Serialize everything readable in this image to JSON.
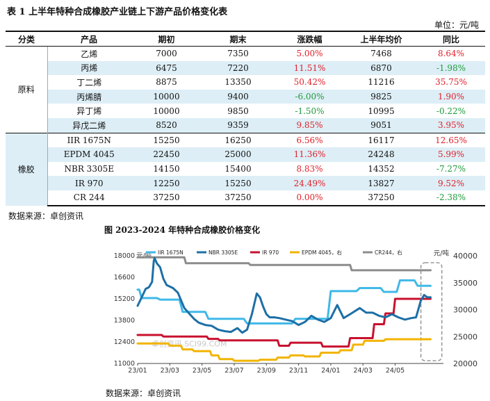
{
  "table": {
    "title": "表 1  上半年特种合成橡胶产业链上下游产品价格变化表",
    "unit": "单位：元/吨",
    "headers": [
      "分类",
      "产品",
      "期初",
      "期末",
      "涨跌幅",
      "上半年均价",
      "同比"
    ],
    "groups": [
      {
        "category": "原料",
        "rows": [
          {
            "product": "乙烯",
            "start": "7000",
            "end": "7350",
            "change": "5.00%",
            "avg": "7468",
            "yoy": "8.64%"
          },
          {
            "product": "丙烯",
            "start": "6475",
            "end": "7220",
            "change": "11.51%",
            "avg": "6870",
            "yoy": "-1.98%"
          },
          {
            "product": "丁二烯",
            "start": "8875",
            "end": "13350",
            "change": "50.42%",
            "avg": "11216",
            "yoy": "35.75%"
          },
          {
            "product": "丙烯腈",
            "start": "10000",
            "end": "9400",
            "change": "-6.00%",
            "avg": "9825",
            "yoy": "1.90%"
          },
          {
            "product": "异丁烯",
            "start": "10000",
            "end": "9850",
            "change": "-1.50%",
            "avg": "10995",
            "yoy": "-0.22%"
          },
          {
            "product": "异戊二烯",
            "start": "8520",
            "end": "9359",
            "change": "9.85%",
            "avg": "9051",
            "yoy": "3.95%"
          }
        ]
      },
      {
        "category": "橡胶",
        "rows": [
          {
            "product": "IIR 1675N",
            "start": "15250",
            "end": "16250",
            "change": "6.56%",
            "avg": "16117",
            "yoy": "12.65%"
          },
          {
            "product": "EPDM 4045",
            "start": "22450",
            "end": "25000",
            "change": "11.36%",
            "avg": "24248",
            "yoy": "5.99%"
          },
          {
            "product": "NBR 3305E",
            "start": "14150",
            "end": "15400",
            "change": "8.83%",
            "avg": "14352",
            "yoy": "-7.27%"
          },
          {
            "product": "IR 970",
            "start": "12250",
            "end": "15250",
            "change": "24.49%",
            "avg": "13827",
            "yoy": "9.52%"
          },
          {
            "product": "CR 244",
            "start": "37250",
            "end": "37250",
            "change": "0.00%",
            "avg": "37250",
            "yoy": "-2.38%"
          }
        ]
      }
    ],
    "source": "数据来源：卓创资讯"
  },
  "figure": {
    "title": "图  2023-2024 年特种合成橡胶价格变化",
    "source": "数据来源：卓创资讯",
    "watermark": "卓创资讯 SCI99.COM"
  },
  "chart_data": {
    "type": "line",
    "left_axis_unit": "元/吨",
    "right_axis_unit": "元/吨",
    "ylim_left": [
      11000,
      18000
    ],
    "yticks_left": [
      "11000",
      "12400",
      "13800",
      "15200",
      "16600",
      "18000"
    ],
    "ylim_right": [
      20000,
      40000
    ],
    "yticks_right": [
      "20000",
      "25000",
      "30000",
      "35000",
      "40000"
    ],
    "xlim": [
      0,
      19
    ],
    "xticks": [
      "23/01",
      "23/03",
      "23/05",
      "23/07",
      "23/09",
      "23/11",
      "24/01",
      "24/03",
      "24/05"
    ],
    "grid": false,
    "legend_position": "top",
    "highlight_box": {
      "x_from": 17.6,
      "x_to": 18.9
    },
    "series": [
      {
        "name": "IIR 1675N",
        "axis": "left",
        "color": "#3fb8e8",
        "x": [
          0,
          0.1,
          0.25,
          1.2,
          1.4,
          2.6,
          2.8,
          4.2,
          4.4,
          6.6,
          6.8,
          9.6,
          9.8,
          11.8,
          12,
          13.6,
          13.8,
          15.1,
          15.3,
          16.1,
          16.3,
          17.2,
          17.4,
          18.2
        ],
        "y": [
          15800,
          15800,
          15250,
          15250,
          15150,
          15150,
          14350,
          14350,
          13900,
          13900,
          13600,
          13600,
          13900,
          13900,
          15700,
          15700,
          15900,
          15900,
          15650,
          15650,
          16400,
          16400,
          16050,
          16050
        ]
      },
      {
        "name": "NBR 3305E",
        "axis": "left",
        "color": "#1d6fa5",
        "x": [
          0,
          0.3,
          0.5,
          0.7,
          0.9,
          1.0,
          1.05,
          1.2,
          1.4,
          1.6,
          1.8,
          2.2,
          2.5,
          2.9,
          3.2,
          3.5,
          3.8,
          4.2,
          4.6,
          5.0,
          5.4,
          5.8,
          6.2,
          6.5,
          6.8,
          7.1,
          7.4,
          7.6,
          7.8,
          8.0,
          8.2,
          8.5,
          8.8,
          9.2,
          9.6,
          10.0,
          10.4,
          10.8,
          11.2,
          11.6,
          12.0,
          12.4,
          12.8,
          13.2,
          13.5,
          13.8,
          14.2,
          14.6,
          15.0,
          15.4,
          15.8,
          16.2,
          16.6,
          17.0,
          17.3,
          17.6,
          17.8,
          18.0,
          18.2
        ],
        "y": [
          14750,
          15400,
          15850,
          15950,
          16300,
          17650,
          17850,
          17500,
          17250,
          16500,
          16100,
          15900,
          15600,
          14600,
          14250,
          13900,
          13650,
          13500,
          13450,
          13200,
          13100,
          13050,
          13300,
          13000,
          13200,
          14200,
          15550,
          15300,
          14700,
          14200,
          14000,
          14000,
          13950,
          13850,
          13750,
          13500,
          13700,
          14100,
          13850,
          13700,
          13950,
          14800,
          13950,
          14200,
          14400,
          14600,
          14300,
          14300,
          14100,
          14000,
          14200,
          14000,
          13850,
          13950,
          14000,
          15100,
          15450,
          15300,
          15300
        ]
      },
      {
        "name": "IR 970",
        "axis": "left",
        "color": "#c8102e",
        "x": [
          0,
          1.5,
          1.6,
          4.3,
          4.4,
          5.0,
          5.1,
          8.7,
          8.8,
          9.4,
          9.5,
          11.4,
          11.5,
          13.1,
          13.2,
          14.6,
          14.7,
          15.3,
          15.4,
          15.9,
          16.0,
          17.1,
          17.2,
          18.2
        ],
        "y": [
          12850,
          12850,
          12750,
          12750,
          12600,
          12600,
          12500,
          12500,
          12150,
          12150,
          12350,
          12350,
          12100,
          12100,
          12650,
          12650,
          13550,
          13550,
          14250,
          14250,
          15200,
          15200,
          15200,
          15200
        ]
      },
      {
        "name": "EPDM 4045，右",
        "axis": "right",
        "color": "#f2b400",
        "x": [
          0,
          1.9,
          2.0,
          2.7,
          2.8,
          3.4,
          3.5,
          4.5,
          4.6,
          5.0,
          5.1,
          5.9,
          6.0,
          7.5,
          7.6,
          8.6,
          8.7,
          9.4,
          9.5,
          10.3,
          10.4,
          11.3,
          11.4,
          12.5,
          12.6,
          13.3,
          13.4,
          14.0,
          14.1,
          15.3,
          15.4,
          18.2
        ],
        "y": [
          23700,
          23700,
          23300,
          23300,
          22600,
          22600,
          22300,
          22300,
          21500,
          21500,
          20800,
          20800,
          20500,
          20500,
          20700,
          20700,
          21100,
          21100,
          21500,
          21500,
          21300,
          21300,
          22000,
          22000,
          22450,
          22450,
          23500,
          23500,
          24200,
          24200,
          24500,
          24500
        ]
      },
      {
        "name": "CR244，右",
        "axis": "right",
        "color": "#8c8c8c",
        "x": [
          0,
          2.9,
          3.0,
          6.9,
          7.0,
          13.2,
          13.3,
          18.2
        ],
        "y": [
          39700,
          39700,
          38600,
          38600,
          38300,
          38300,
          37300,
          37300
        ]
      }
    ]
  }
}
